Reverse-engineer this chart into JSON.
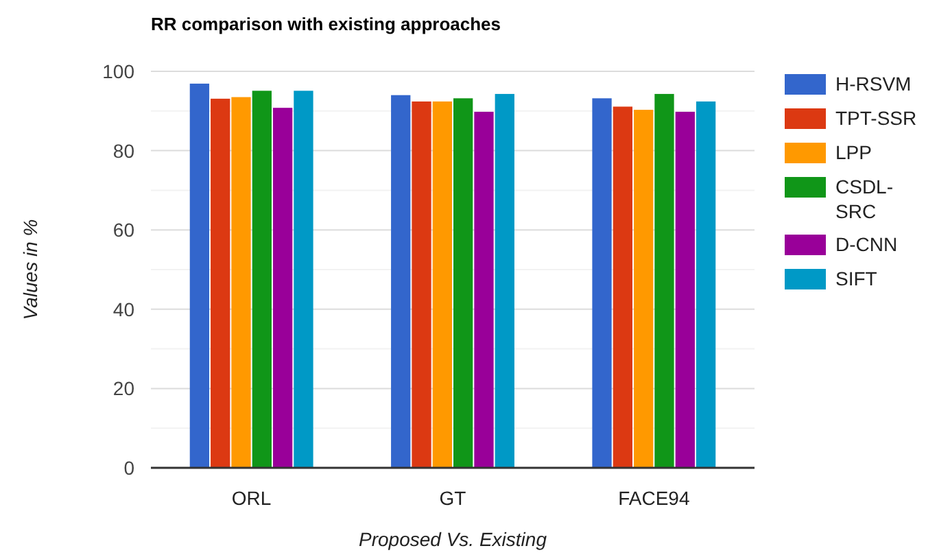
{
  "chart_data": {
    "type": "bar",
    "title": "RR comparison with existing approaches",
    "xlabel": "Proposed Vs. Existing",
    "ylabel": "Values in %",
    "categories": [
      "ORL",
      "GT",
      "FACE94"
    ],
    "series": [
      {
        "name": "H-RSVM",
        "color": "#3366cc",
        "values": [
          96.9,
          94.0,
          93.2
        ]
      },
      {
        "name": "TPT-SSR",
        "color": "#dc3912",
        "values": [
          93.1,
          92.4,
          91.1
        ]
      },
      {
        "name": "LPP",
        "color": "#ff9900",
        "values": [
          93.5,
          92.4,
          90.3
        ]
      },
      {
        "name": "CSDL-SRC",
        "color": "#109618",
        "values": [
          95.1,
          93.2,
          94.3
        ]
      },
      {
        "name": "D-CNN",
        "color": "#990099",
        "values": [
          90.8,
          89.8,
          89.8
        ]
      },
      {
        "name": "SIFT",
        "color": "#0099c6",
        "values": [
          95.1,
          94.3,
          92.4
        ]
      }
    ],
    "ylim": [
      0,
      100
    ],
    "yticks": [
      0,
      {
        "value": 10,
        "label": null
      },
      20,
      {
        "value": 30,
        "label": null
      },
      40,
      {
        "value": 50,
        "label": null
      },
      60,
      {
        "value": 70,
        "label": null
      },
      80,
      {
        "value": 90,
        "label": null
      },
      100
    ],
    "grid": "y",
    "legend": "right"
  }
}
